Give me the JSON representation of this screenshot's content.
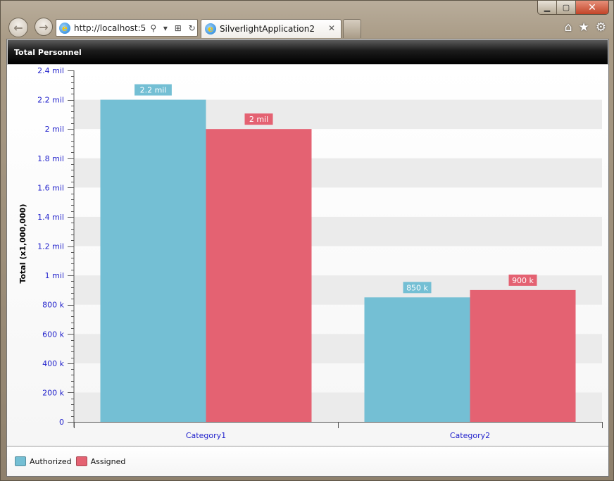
{
  "browser": {
    "address": "http://localhost:5",
    "tab_title": "SilverlightApplication2",
    "ie_icon": "ie-logo-icon",
    "address_tools": "⚲ ▾ ⊞ ↻ ✕",
    "tab_close": "✕",
    "window_controls": {
      "minimize": "▁",
      "restore": "▢",
      "close": "✕"
    },
    "icons": {
      "back": "back-arrow-icon",
      "forward": "forward-arrow-icon",
      "home": "home-icon",
      "favorites": "star-icon",
      "tools": "gear-icon"
    }
  },
  "app": {
    "header_title": "Total Personnel"
  },
  "colors": {
    "authorized": "#74bfd4",
    "assigned": "#e46272",
    "axis_label": "#2222cc",
    "stripe": "#ebebeb"
  },
  "chart_data": {
    "type": "bar",
    "categories": [
      "Category1",
      "Category2"
    ],
    "series": [
      {
        "name": "Authorized",
        "values": [
          2200000,
          850000
        ],
        "labels": [
          "2.2 mil",
          "850 k"
        ]
      },
      {
        "name": "Assigned",
        "values": [
          2000000,
          900000
        ],
        "labels": [
          "2 mil",
          "900 k"
        ]
      }
    ],
    "ylabel": "Total (x1,000,000)",
    "ylim": [
      0,
      2400000
    ],
    "yticks": [
      0,
      200000,
      400000,
      600000,
      800000,
      1000000,
      1200000,
      1400000,
      1600000,
      1800000,
      2000000,
      2200000,
      2400000
    ],
    "ytick_labels": [
      "0",
      "200 k",
      "400 k",
      "600 k",
      "800 k",
      "1 mil",
      "1.2 mil",
      "1.4 mil",
      "1.6 mil",
      "1.8 mil",
      "2 mil",
      "2.2 mil",
      "2.4 mil"
    ],
    "legend_position": "bottom-left",
    "grid": "alternating horizontal bands"
  }
}
